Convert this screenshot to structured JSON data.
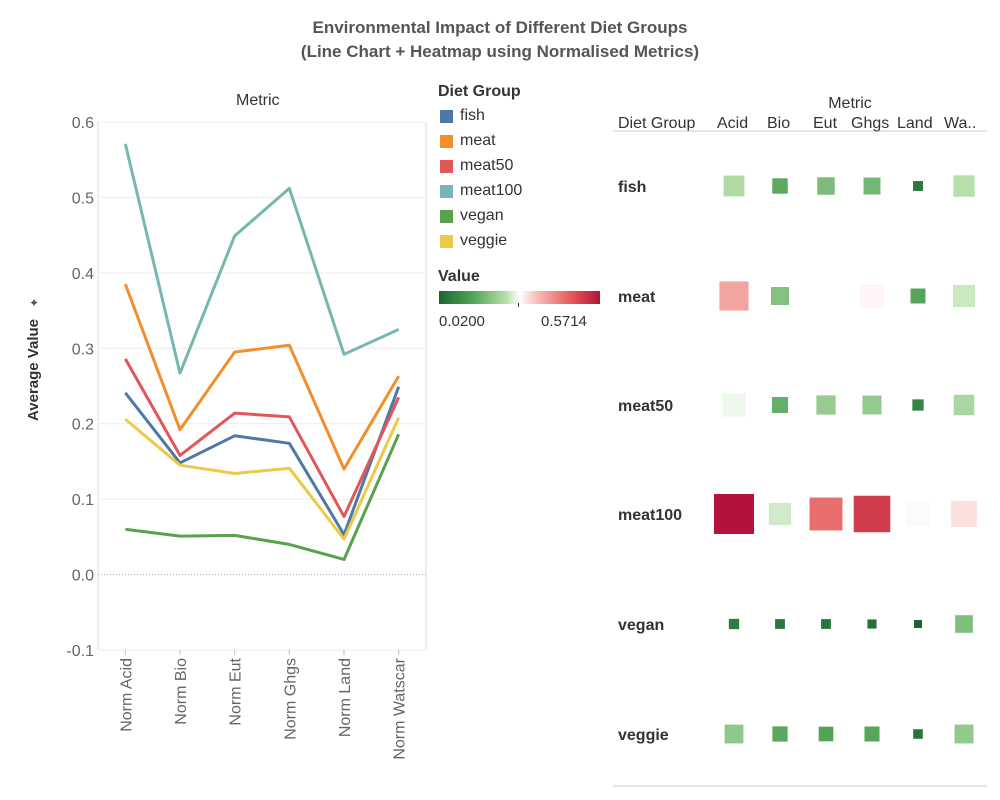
{
  "title_line1": "Environmental Impact of Different Diet Groups",
  "title_line2": "(Line Chart + Heatmap using Normalised Metrics)",
  "colors": {
    "fish": "#4e79a7",
    "meat": "#f28e2b",
    "meat50": "#e15759",
    "meat100": "#76b7b2",
    "vegan": "#59a14f",
    "veggie": "#edc948"
  },
  "legend": {
    "title": "Diet Group",
    "items": [
      "fish",
      "meat",
      "meat50",
      "meat100",
      "vegan",
      "veggie"
    ],
    "value_title": "Value",
    "value_min_label": "0.0200",
    "value_max_label": "0.5714"
  },
  "chart_data": [
    {
      "type": "line",
      "title": "",
      "header": "Metric",
      "xlabel": "",
      "ylabel": "Average Value",
      "ylim": [
        -0.1,
        0.6
      ],
      "yticks": [
        0.6,
        0.5,
        0.4,
        0.3,
        0.2,
        0.1,
        0.0,
        -0.1
      ],
      "ytick_labels": [
        "0.6",
        "0.5",
        "0.4",
        "0.3",
        "0.2",
        "0.1",
        "0.0",
        "-0.1"
      ],
      "categories": [
        "Norm Acid",
        "Norm Bio",
        "Norm Eut",
        "Norm Ghgs",
        "Norm Land",
        "Norm Watscar"
      ],
      "grid": true,
      "series": [
        {
          "name": "fish",
          "values": [
            0.241,
            0.148,
            0.184,
            0.174,
            0.053,
            0.249
          ]
        },
        {
          "name": "meat",
          "values": [
            0.385,
            0.192,
            0.295,
            0.304,
            0.14,
            0.263
          ]
        },
        {
          "name": "meat50",
          "values": [
            0.286,
            0.158,
            0.214,
            0.209,
            0.077,
            0.235
          ]
        },
        {
          "name": "meat100",
          "values": [
            0.571,
            0.267,
            0.449,
            0.512,
            0.292,
            0.325
          ]
        },
        {
          "name": "vegan",
          "values": [
            0.06,
            0.051,
            0.052,
            0.04,
            0.02,
            0.186
          ]
        },
        {
          "name": "veggie",
          "values": [
            0.206,
            0.145,
            0.134,
            0.141,
            0.047,
            0.208
          ]
        }
      ]
    },
    {
      "type": "heatmap",
      "title": "",
      "header": "Metric",
      "row_header": "Diet Group",
      "columns": [
        "Acid",
        "Bio",
        "Eut",
        "Ghgs",
        "Land",
        "Wa.."
      ],
      "rows": [
        "fish",
        "meat",
        "meat50",
        "meat100",
        "vegan",
        "veggie"
      ],
      "values": [
        [
          0.241,
          0.148,
          0.184,
          0.174,
          0.053,
          0.249
        ],
        [
          0.385,
          0.192,
          0.295,
          0.304,
          0.14,
          0.263
        ],
        [
          0.286,
          0.158,
          0.214,
          0.209,
          0.077,
          0.235
        ],
        [
          0.571,
          0.267,
          0.449,
          0.512,
          0.292,
          0.325
        ],
        [
          0.06,
          0.051,
          0.052,
          0.04,
          0.02,
          0.186
        ],
        [
          0.206,
          0.145,
          0.134,
          0.141,
          0.047,
          0.208
        ]
      ],
      "color_scale": {
        "min": 0.02,
        "mid": 0.2957,
        "max": 0.5714,
        "colors": [
          "#1a6632",
          "#57a65a",
          "#b8e0ad",
          "#ffffff",
          "#f5b8b4",
          "#e55a5a",
          "#b3133a"
        ]
      },
      "size_encodes": "value"
    }
  ]
}
